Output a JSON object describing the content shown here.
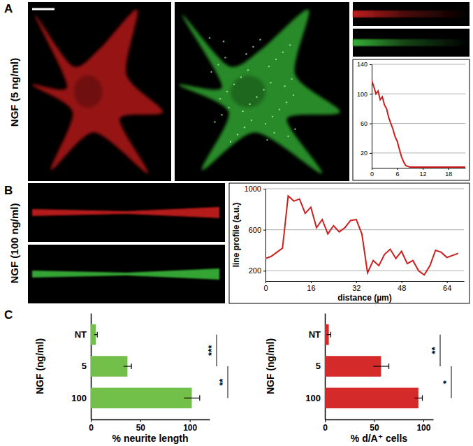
{
  "figure": {
    "panel_labels": [
      "A",
      "B",
      "C"
    ],
    "row_labels": [
      "NGF (5 ng/ml)",
      "NGF (100 ng/ml)"
    ]
  },
  "chart_data": [
    {
      "type": "line",
      "color": "#cc1f1f",
      "x": [
        0,
        0.5,
        1,
        1.5,
        2,
        2.5,
        3,
        3.5,
        4,
        4.5,
        5,
        5.5,
        6,
        6.5,
        7,
        7.5,
        8,
        9,
        10,
        12,
        14,
        16,
        18,
        20,
        22
      ],
      "values": [
        118,
        110,
        100,
        104,
        92,
        96,
        85,
        80,
        68,
        60,
        52,
        42,
        36,
        25,
        15,
        8,
        3,
        1,
        1,
        1,
        1,
        1,
        1,
        1,
        1
      ],
      "xlim": [
        0,
        22
      ],
      "xticks": [
        0,
        6,
        12,
        18
      ],
      "ylim": [
        0,
        140
      ],
      "yticks": [
        20,
        60,
        100,
        140
      ],
      "grid": true
    },
    {
      "type": "line",
      "color": "#cc1f1f",
      "x_label": "distance (µm)",
      "y_label": "line profile (a.u.)",
      "x": [
        0,
        2,
        4,
        6,
        8,
        10,
        12,
        14,
        16,
        18,
        20,
        22,
        24,
        26,
        28,
        30,
        32,
        34,
        36,
        38,
        40,
        42,
        44,
        46,
        48,
        50,
        52,
        54,
        56,
        58,
        60,
        62,
        64,
        66,
        68
      ],
      "values": [
        320,
        340,
        380,
        420,
        930,
        880,
        900,
        760,
        820,
        620,
        700,
        560,
        640,
        580,
        620,
        690,
        700,
        560,
        180,
        300,
        250,
        360,
        410,
        320,
        390,
        270,
        300,
        200,
        160,
        250,
        400,
        380,
        330,
        350,
        370
      ],
      "xlim": [
        0,
        70
      ],
      "xticks": [
        0,
        16,
        32,
        48,
        64
      ],
      "ylim": [
        100,
        1000
      ],
      "yticks": [
        200,
        600,
        1000
      ],
      "grid": true
    },
    {
      "type": "bar",
      "orientation": "horizontal",
      "color": "#72c04a",
      "categories": [
        "NT",
        "5",
        "100"
      ],
      "values": [
        5,
        37,
        102
      ],
      "errors": [
        1.5,
        4,
        8
      ],
      "x_label": "% neurite length",
      "y_label": "NGF (ng/ml)",
      "xlim": [
        0,
        120
      ],
      "xticks": [
        0,
        50,
        100
      ],
      "significance": [
        {
          "pair": [
            "NT",
            "5"
          ],
          "label": "***"
        },
        {
          "pair": [
            "5",
            "100"
          ],
          "label": "**"
        }
      ]
    },
    {
      "type": "bar",
      "orientation": "horizontal",
      "color": "#d42a2a",
      "categories": [
        "NT",
        "5",
        "100"
      ],
      "values": [
        4,
        57,
        95
      ],
      "errors": [
        2,
        8,
        4
      ],
      "x_label": "% d/A⁺ cells",
      "y_label": "NGF (ng/ml)",
      "xlim": [
        0,
        110
      ],
      "xticks": [
        0,
        50,
        100
      ],
      "significance": [
        {
          "pair": [
            "NT",
            "5"
          ],
          "label": "**"
        },
        {
          "pair": [
            "5",
            "100"
          ],
          "label": "*"
        }
      ]
    }
  ]
}
